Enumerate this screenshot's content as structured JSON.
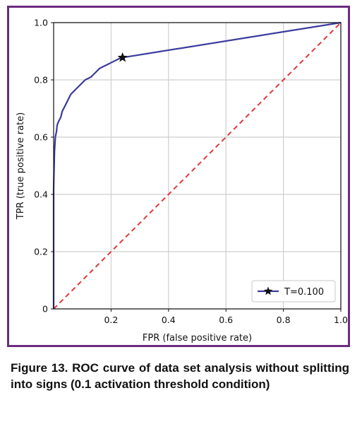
{
  "chart_data": {
    "type": "line",
    "xlabel": "FPR (false positive rate)",
    "ylabel": "TPR (true positive rate)",
    "xlim": [
      0,
      1
    ],
    "ylim": [
      0,
      1
    ],
    "x_ticks": [
      "0.2",
      "0.4",
      "0.6",
      "0.8",
      "1.0"
    ],
    "y_ticks": [
      "0",
      "0.2",
      "0.4",
      "0.6",
      "0.8",
      "1.0"
    ],
    "grid": true,
    "legend_position": "bottom-right",
    "series": [
      {
        "name": "T=0.100",
        "color": "#3b3b9e",
        "style": "solid",
        "marker": "star",
        "x": [
          0.0,
          0.0,
          0.003,
          0.006,
          0.01,
          0.012,
          0.015,
          0.02,
          0.025,
          0.03,
          0.035,
          0.04,
          0.045,
          0.05,
          0.055,
          0.06,
          0.07,
          0.08,
          0.09,
          0.1,
          0.11,
          0.12,
          0.13,
          0.14,
          0.15,
          0.16,
          0.17,
          0.18,
          0.19,
          0.2,
          0.21,
          0.22,
          0.23,
          0.24,
          1.0
        ],
        "y": [
          0.0,
          0.42,
          0.55,
          0.6,
          0.62,
          0.64,
          0.65,
          0.66,
          0.67,
          0.69,
          0.7,
          0.71,
          0.72,
          0.73,
          0.74,
          0.75,
          0.76,
          0.77,
          0.78,
          0.79,
          0.8,
          0.805,
          0.81,
          0.82,
          0.83,
          0.84,
          0.845,
          0.85,
          0.855,
          0.86,
          0.865,
          0.87,
          0.875,
          0.878,
          1.0
        ]
      },
      {
        "name": "",
        "color": "#e0383c",
        "style": "dashed",
        "x": [
          0,
          1
        ],
        "y": [
          0,
          1
        ]
      }
    ],
    "marker_point": {
      "x": 0.24,
      "y": 0.878
    }
  },
  "caption": "Figure 13. ROC curve of data set analysis without splitting into signs (0.1 activation threshold condition)",
  "colors": {
    "frame_border": "#6b2c7f",
    "roc_line": "#3b3b9e",
    "diagonal": "#e0383c",
    "grid": "#cfcfcf"
  }
}
